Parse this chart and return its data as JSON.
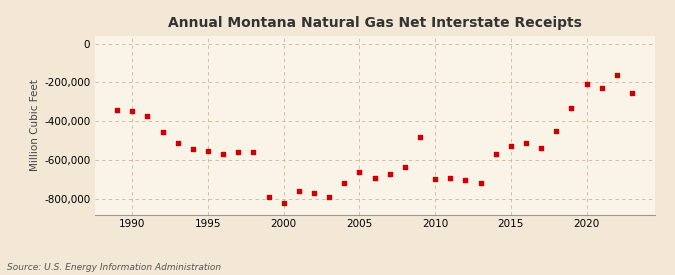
{
  "title": "Annual Montana Natural Gas Net Interstate Receipts",
  "ylabel": "Million Cubic Feet",
  "source": "Source: U.S. Energy Information Administration",
  "background_color": "#f2e8d5",
  "plot_background_color": "#faf4e8",
  "grid_color": "#c8b89a",
  "point_color": "#cc0000",
  "xlim": [
    1987.5,
    2024.5
  ],
  "ylim": [
    -880000,
    40000
  ],
  "yticks": [
    0,
    -200000,
    -400000,
    -600000,
    -800000
  ],
  "xticks": [
    1990,
    1995,
    2000,
    2005,
    2010,
    2015,
    2020
  ],
  "years": [
    1989,
    1990,
    1991,
    1992,
    1993,
    1994,
    1995,
    1996,
    1997,
    1998,
    1999,
    2000,
    2001,
    2002,
    2003,
    2004,
    2005,
    2006,
    2007,
    2008,
    2009,
    2010,
    2011,
    2012,
    2013,
    2014,
    2015,
    2016,
    2017,
    2018,
    2019,
    2020,
    2021,
    2022,
    2023
  ],
  "values": [
    -340000,
    -345000,
    -375000,
    -455000,
    -510000,
    -545000,
    -555000,
    -570000,
    -560000,
    -560000,
    -790000,
    -820000,
    -760000,
    -770000,
    -790000,
    -720000,
    -660000,
    -690000,
    -670000,
    -635000,
    -480000,
    -695000,
    -690000,
    -700000,
    -720000,
    -570000,
    -530000,
    -510000,
    -540000,
    -450000,
    -330000,
    -210000,
    -230000,
    -160000,
    -255000
  ]
}
